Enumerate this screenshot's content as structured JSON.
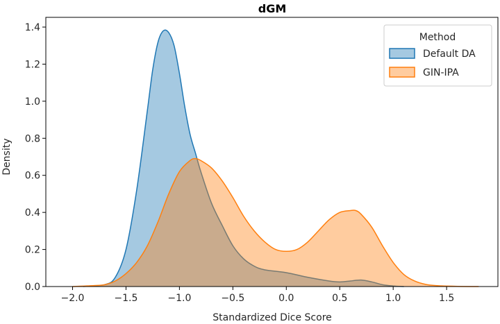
{
  "chart_data": {
    "type": "area",
    "title": "dGM",
    "xlabel": "Standardized Dice Score",
    "ylabel": "Density",
    "xlim": [
      -2.25,
      1.98
    ],
    "ylim": [
      0,
      1.4525
    ],
    "xticks": [
      -2.0,
      -1.5,
      -1.0,
      -0.5,
      0.0,
      0.5,
      1.0,
      1.5
    ],
    "xtick_labels": [
      "−2.0",
      "−1.5",
      "−1.0",
      "−0.5",
      "0.0",
      "0.5",
      "1.0",
      "1.5"
    ],
    "yticks": [
      0.0,
      0.2,
      0.4,
      0.6,
      0.8,
      1.0,
      1.2,
      1.4
    ],
    "ytick_labels": [
      "0.0",
      "0.2",
      "0.4",
      "0.6",
      "0.8",
      "1.0",
      "1.2",
      "1.4"
    ],
    "legend": {
      "title": "Method",
      "placement": "top-right"
    },
    "grid": false,
    "series": [
      {
        "name": "Default DA",
        "color": "#1f77b4",
        "fill": "#1f77b4",
        "x": [
          -1.9,
          -1.7,
          -1.6,
          -1.5,
          -1.4,
          -1.3,
          -1.25,
          -1.2,
          -1.15,
          -1.1,
          -1.05,
          -1.0,
          -0.95,
          -0.9,
          -0.85,
          -0.8,
          -0.7,
          -0.6,
          -0.5,
          -0.4,
          -0.3,
          -0.2,
          0.0,
          0.2,
          0.4,
          0.5,
          0.6,
          0.7,
          0.8,
          0.9,
          1.0,
          1.1
        ],
        "y": [
          0.0,
          0.01,
          0.05,
          0.2,
          0.52,
          0.95,
          1.17,
          1.32,
          1.38,
          1.37,
          1.3,
          1.15,
          0.97,
          0.82,
          0.72,
          0.62,
          0.45,
          0.33,
          0.22,
          0.15,
          0.11,
          0.09,
          0.075,
          0.05,
          0.03,
          0.025,
          0.03,
          0.035,
          0.025,
          0.01,
          0.003,
          0.0
        ]
      },
      {
        "name": "GIN-IPA",
        "color": "#ff7f0e",
        "fill": "#ff7f0e",
        "x": [
          -2.0,
          -1.8,
          -1.7,
          -1.6,
          -1.5,
          -1.4,
          -1.3,
          -1.2,
          -1.1,
          -1.0,
          -0.9,
          -0.85,
          -0.8,
          -0.7,
          -0.6,
          -0.5,
          -0.4,
          -0.3,
          -0.2,
          -0.1,
          0.0,
          0.1,
          0.2,
          0.3,
          0.4,
          0.5,
          0.6,
          0.65,
          0.7,
          0.8,
          0.9,
          1.0,
          1.1,
          1.2,
          1.3,
          1.4,
          1.6,
          1.8
        ],
        "y": [
          0.0,
          0.005,
          0.01,
          0.03,
          0.07,
          0.13,
          0.22,
          0.35,
          0.5,
          0.62,
          0.68,
          0.69,
          0.68,
          0.64,
          0.57,
          0.48,
          0.38,
          0.3,
          0.24,
          0.2,
          0.19,
          0.2,
          0.24,
          0.3,
          0.36,
          0.4,
          0.41,
          0.41,
          0.39,
          0.32,
          0.22,
          0.13,
          0.065,
          0.03,
          0.012,
          0.005,
          0.001,
          0.0
        ]
      }
    ]
  }
}
